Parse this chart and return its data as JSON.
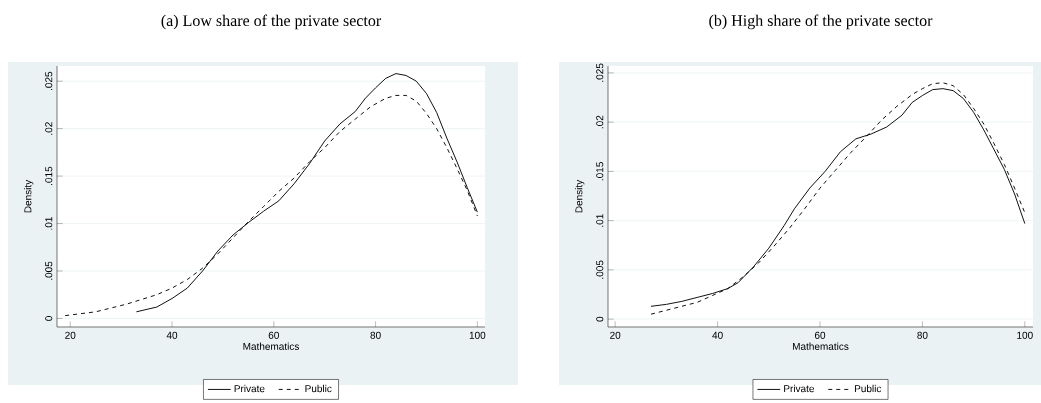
{
  "chart_data": [
    {
      "type": "line",
      "title": "(a) Low share of the private sector",
      "xlabel": "Mathematics",
      "ylabel": "Density",
      "xlim": [
        17.4,
        101.5
      ],
      "ylim": [
        -0.0009,
        0.0266
      ],
      "xticks": [
        20,
        40,
        60,
        80,
        100
      ],
      "yticks": [
        0,
        {
          "value": 0.005,
          "label": ".005"
        },
        {
          "value": 0.01,
          "label": ".01"
        },
        {
          "value": 0.015,
          "label": ".015"
        },
        {
          "value": 0.02,
          "label": ".02"
        },
        {
          "value": 0.025,
          "label": ".025"
        }
      ],
      "grid": "y",
      "legend": "bottom",
      "series": [
        {
          "name": "Private",
          "color": "#000000",
          "line_style": "solid",
          "x": [
            33,
            37,
            40,
            43,
            46,
            49,
            52,
            55,
            58,
            61,
            64,
            67,
            70,
            73,
            76,
            78,
            80,
            82,
            84,
            86,
            88,
            90,
            92,
            94,
            96,
            98,
            100
          ],
          "values": [
            0.0007,
            0.0012,
            0.0021,
            0.0032,
            0.005,
            0.0071,
            0.0088,
            0.0101,
            0.0113,
            0.0124,
            0.0142,
            0.0163,
            0.0187,
            0.0205,
            0.0218,
            0.0232,
            0.0243,
            0.0253,
            0.0258,
            0.0256,
            0.025,
            0.0237,
            0.0217,
            0.019,
            0.0165,
            0.0138,
            0.0112
          ]
        },
        {
          "name": "Public",
          "color": "#000000",
          "line_style": "dashed",
          "x": [
            19,
            22,
            25,
            28,
            31,
            34,
            37,
            40,
            43,
            46,
            49,
            52,
            55,
            58,
            61,
            64,
            67,
            70,
            73,
            76,
            79,
            82,
            84,
            86,
            88,
            90,
            92,
            94,
            96,
            98,
            100
          ],
          "values": [
            0.0003,
            0.0005,
            0.0007,
            0.0011,
            0.0015,
            0.002,
            0.0025,
            0.0032,
            0.0041,
            0.0053,
            0.0068,
            0.0085,
            0.0102,
            0.0118,
            0.0134,
            0.0148,
            0.0165,
            0.018,
            0.0197,
            0.021,
            0.0223,
            0.0232,
            0.0235,
            0.0235,
            0.0229,
            0.0216,
            0.02,
            0.018,
            0.0158,
            0.0135,
            0.0108
          ]
        }
      ]
    },
    {
      "type": "line",
      "title": "(b) High share of the private sector",
      "xlabel": "Mathematics",
      "ylabel": "Density",
      "xlim": [
        18.6,
        101.6
      ],
      "ylim": [
        -0.0008,
        0.0257
      ],
      "xticks": [
        20,
        40,
        60,
        80,
        100
      ],
      "yticks": [
        0,
        {
          "value": 0.005,
          "label": ".005"
        },
        {
          "value": 0.01,
          "label": ".01"
        },
        {
          "value": 0.015,
          "label": ".015"
        },
        {
          "value": 0.02,
          "label": ".02"
        },
        {
          "value": 0.025,
          "label": ".025"
        }
      ],
      "grid": "y",
      "legend": "bottom",
      "series": [
        {
          "name": "Private",
          "color": "#000000",
          "line_style": "solid",
          "x": [
            27,
            30,
            33,
            36,
            39,
            42,
            44,
            47,
            50,
            53,
            55,
            58,
            61,
            64,
            67,
            70,
            73,
            76,
            78,
            80,
            82,
            84,
            86,
            88,
            90,
            92,
            94,
            96,
            98,
            100
          ],
          "values": [
            0.0013,
            0.0015,
            0.0018,
            0.0022,
            0.0026,
            0.0031,
            0.0037,
            0.0053,
            0.0072,
            0.0095,
            0.0112,
            0.0133,
            0.015,
            0.017,
            0.0183,
            0.0188,
            0.0195,
            0.0207,
            0.022,
            0.0227,
            0.0233,
            0.0234,
            0.0232,
            0.0224,
            0.021,
            0.0192,
            0.0172,
            0.0152,
            0.0127,
            0.0097
          ]
        },
        {
          "name": "Public",
          "color": "#000000",
          "line_style": "dashed",
          "x": [
            27,
            30,
            33,
            36,
            39,
            42,
            45,
            48,
            51,
            54,
            57,
            60,
            63,
            66,
            69,
            72,
            75,
            78,
            80,
            82,
            84,
            86,
            88,
            90,
            92,
            94,
            96,
            98,
            100
          ],
          "values": [
            0.0005,
            0.0009,
            0.0013,
            0.0017,
            0.0024,
            0.0031,
            0.0043,
            0.0057,
            0.0074,
            0.0092,
            0.0112,
            0.0133,
            0.0151,
            0.0169,
            0.0185,
            0.0202,
            0.0216,
            0.0228,
            0.0234,
            0.0239,
            0.024,
            0.0237,
            0.0228,
            0.0214,
            0.0198,
            0.0178,
            0.0157,
            0.0133,
            0.0108
          ]
        }
      ]
    }
  ]
}
